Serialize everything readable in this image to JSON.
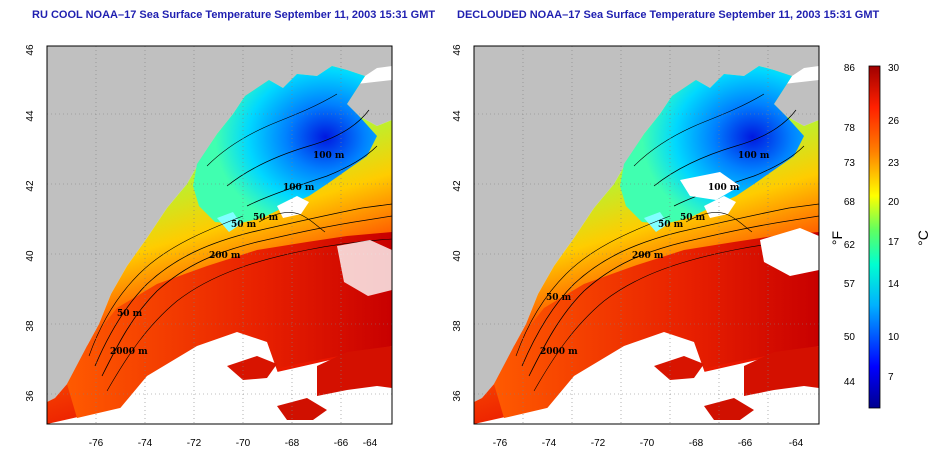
{
  "titles": {
    "left": "RU COOL NOAA–17 Sea Surface Temperature September 11, 2003 15:31 GMT",
    "right": "DECLOUDED NOAA–17 Sea Surface Temperature September 11, 2003 15:31 GMT"
  },
  "axes": {
    "lon_ticks": [
      "-76",
      "-74",
      "-72",
      "-70",
      "-68",
      "-66",
      "-64"
    ],
    "lat_ticks": [
      "36",
      "38",
      "40",
      "42",
      "44",
      "46"
    ]
  },
  "contours": {
    "left": [
      "100 m",
      "100 m",
      "50 m",
      "50 m",
      "200 m",
      "50 m",
      "2000 m"
    ],
    "right": [
      "100 m",
      "100 m",
      "50 m",
      "50 m",
      "200 m",
      "50 m",
      "2000 m"
    ]
  },
  "colorbar": {
    "fahrenheit_ticks": [
      "86",
      "78",
      "73",
      "68",
      "62",
      "57",
      "50",
      "44"
    ],
    "celsius_ticks": [
      "30",
      "26",
      "23",
      "20",
      "17",
      "14",
      "10",
      "7"
    ],
    "fahrenheit_unit": "°F",
    "celsius_unit": "°C"
  },
  "colors": {
    "land": "#c0c0c0",
    "title": "#1f1fb0",
    "no_data": "#ffffff"
  }
}
